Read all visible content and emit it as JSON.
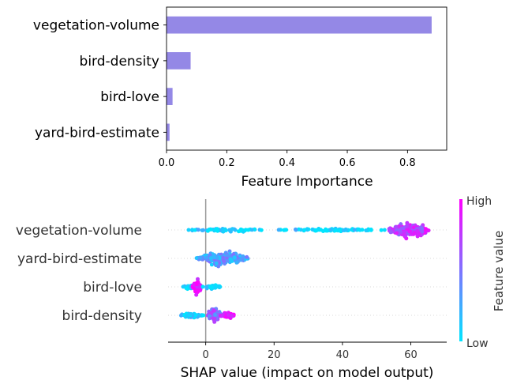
{
  "chart_data": [
    {
      "type": "bar",
      "orientation": "horizontal",
      "categories": [
        "vegetation-volume",
        "bird-density",
        "bird-love",
        "yard-bird-estimate"
      ],
      "values": [
        0.88,
        0.08,
        0.02,
        0.01
      ],
      "xlabel": "Feature Importance",
      "xlim": [
        0,
        0.93
      ],
      "xticks": [
        "0.0",
        "0.2",
        "0.4",
        "0.6",
        "0.8"
      ],
      "bar_color": "#9488e6",
      "grid": false
    },
    {
      "type": "scatter",
      "subtype": "shap-beeswarm",
      "features": [
        {
          "name": "vegetation-volume",
          "segments": [
            {
              "from": -6,
              "to": 18,
              "value_mix": 0.05,
              "density": 55,
              "spread": 0.25
            },
            {
              "from": 20,
              "to": 54,
              "value_mix": 0.05,
              "density": 90,
              "spread": 0.18
            },
            {
              "from": 53,
              "to": 66,
              "value_mix": 0.75,
              "density": 260,
              "spread": 1.0
            }
          ]
        },
        {
          "name": "yard-bird-estimate",
          "segments": [
            {
              "from": -3,
              "to": 13,
              "value_mix": 0.3,
              "density": 230,
              "spread": 1.0
            }
          ]
        },
        {
          "name": "bird-love",
          "segments": [
            {
              "from": -7,
              "to": -1,
              "value_mix": 0.1,
              "density": 40,
              "spread": 0.35
            },
            {
              "from": -4,
              "to": -1,
              "value_mix": 0.95,
              "density": 45,
              "spread": 1.0
            },
            {
              "from": -1,
              "to": 5,
              "value_mix": 0.0,
              "density": 30,
              "spread": 0.3
            }
          ]
        },
        {
          "name": "bird-density",
          "segments": [
            {
              "from": -8,
              "to": 0,
              "value_mix": 0.05,
              "density": 60,
              "spread": 0.35
            },
            {
              "from": 0,
              "to": 5,
              "value_mix": 0.55,
              "density": 120,
              "spread": 1.0
            },
            {
              "from": 4,
              "to": 9,
              "value_mix": 1.0,
              "density": 60,
              "spread": 0.4
            }
          ]
        }
      ],
      "xlabel": "SHAP value (impact on model output)",
      "xlim": [
        -11,
        70.5
      ],
      "xticks": [
        0,
        20,
        40,
        60
      ],
      "colorbar": {
        "label": "Feature value",
        "high_label": "High",
        "low_label": "Low",
        "low_color": "#00e5ff",
        "high_color": "#ff00ff"
      },
      "grid": false
    }
  ]
}
